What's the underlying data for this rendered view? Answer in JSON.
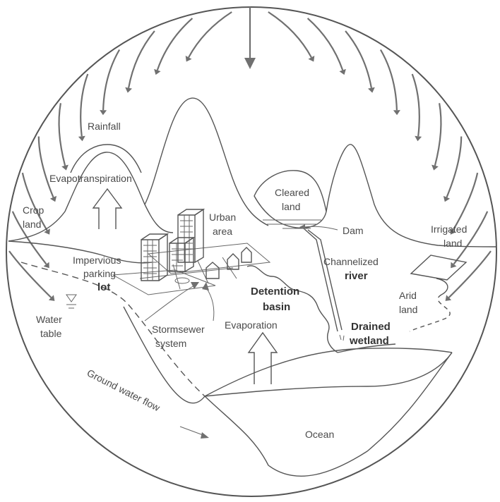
{
  "labels": {
    "rainfall": "Rainfall",
    "evapotranspiration": "Evapotranspiration",
    "crop_1": "Crop",
    "crop_2": "land",
    "urban_1": "Urban",
    "urban_2": "area",
    "cleared_1": "Cleared",
    "cleared_2": "land",
    "dam": "Dam",
    "irrigated_1": "Irrigated",
    "irrigated_2": "land",
    "impervious_1": "Impervious",
    "impervious_2": "parking",
    "impervious_3": "lot",
    "channelized_1": "Channelized",
    "channelized_2": "river",
    "detention_1": "Detention",
    "detention_2": "basin",
    "arid_1": "Arid",
    "arid_2": "land",
    "water_table_1": "Water",
    "water_table_2": "table",
    "stormsewer_1": "Stormsewer",
    "stormsewer_2": "system",
    "evaporation": "Evaporation",
    "drained_1": "Drained",
    "drained_2": "wetland",
    "groundwater": "Ground water flow",
    "ocean": "Ocean"
  },
  "colors": {
    "line": "#555555",
    "arrow": "#707070",
    "text": "#4a4a4a"
  }
}
